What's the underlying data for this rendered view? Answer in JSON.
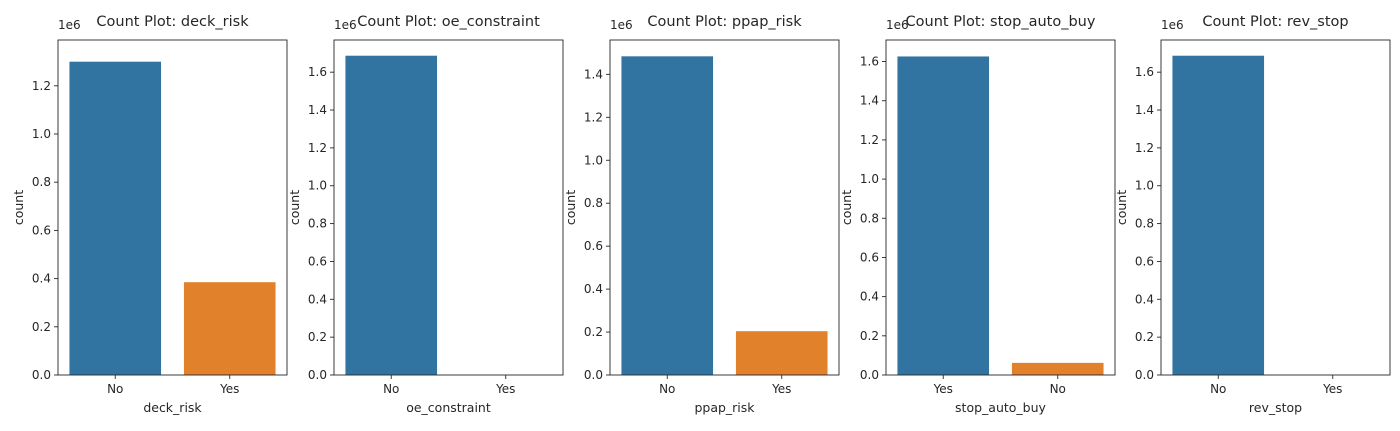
{
  "chart_data": [
    {
      "type": "bar",
      "title": "Count Plot: deck_risk",
      "xlabel": "deck_risk",
      "ylabel": "count",
      "scale_label": "1e6",
      "categories": [
        "No",
        "Yes"
      ],
      "values": [
        1.3,
        0.385
      ],
      "colors": [
        "#3274a1",
        "#e1812c"
      ],
      "ylim": [
        0,
        1.39
      ],
      "yticks": [
        "0.0",
        "0.2",
        "0.4",
        "0.6",
        "0.8",
        "1.0",
        "1.2"
      ],
      "ytick_values": [
        0,
        0.2,
        0.4,
        0.6,
        0.8,
        1.0,
        1.2
      ]
    },
    {
      "type": "bar",
      "title": "Count Plot: oe_constraint",
      "xlabel": "oe_constraint",
      "ylabel": "count",
      "scale_label": "1e6",
      "categories": [
        "No",
        "Yes"
      ],
      "values": [
        1.687,
        0.0005
      ],
      "colors": [
        "#3274a1",
        "#e1812c"
      ],
      "ylim": [
        0,
        1.77
      ],
      "yticks": [
        "0.0",
        "0.2",
        "0.4",
        "0.6",
        "0.8",
        "1.0",
        "1.2",
        "1.4",
        "1.6"
      ],
      "ytick_values": [
        0,
        0.2,
        0.4,
        0.6,
        0.8,
        1.0,
        1.2,
        1.4,
        1.6
      ]
    },
    {
      "type": "bar",
      "title": "Count Plot: ppap_risk",
      "xlabel": "ppap_risk",
      "ylabel": "count",
      "scale_label": "1e6",
      "categories": [
        "No",
        "Yes"
      ],
      "values": [
        1.484,
        0.204
      ],
      "colors": [
        "#3274a1",
        "#e1812c"
      ],
      "ylim": [
        0,
        1.56
      ],
      "yticks": [
        "0.0",
        "0.2",
        "0.4",
        "0.6",
        "0.8",
        "1.0",
        "1.2",
        "1.4"
      ],
      "ytick_values": [
        0,
        0.2,
        0.4,
        0.6,
        0.8,
        1.0,
        1.2,
        1.4
      ]
    },
    {
      "type": "bar",
      "title": "Count Plot: stop_auto_buy",
      "xlabel": "stop_auto_buy",
      "ylabel": "count",
      "scale_label": "1e6",
      "categories": [
        "Yes",
        "No"
      ],
      "values": [
        1.626,
        0.062
      ],
      "colors": [
        "#3274a1",
        "#e1812c"
      ],
      "ylim": [
        0,
        1.71
      ],
      "yticks": [
        "0.0",
        "0.2",
        "0.4",
        "0.6",
        "0.8",
        "1.0",
        "1.2",
        "1.4",
        "1.6"
      ],
      "ytick_values": [
        0,
        0.2,
        0.4,
        0.6,
        0.8,
        1.0,
        1.2,
        1.4,
        1.6
      ]
    },
    {
      "type": "bar",
      "title": "Count Plot: rev_stop",
      "xlabel": "rev_stop",
      "ylabel": "count",
      "scale_label": "1e6",
      "categories": [
        "No",
        "Yes"
      ],
      "values": [
        1.687,
        0.0008
      ],
      "colors": [
        "#3274a1",
        "#e1812c"
      ],
      "ylim": [
        0,
        1.77
      ],
      "yticks": [
        "0.0",
        "0.2",
        "0.4",
        "0.6",
        "0.8",
        "1.0",
        "1.2",
        "1.4",
        "1.6"
      ],
      "ytick_values": [
        0,
        0.2,
        0.4,
        0.6,
        0.8,
        1.0,
        1.2,
        1.4,
        1.6
      ]
    }
  ]
}
